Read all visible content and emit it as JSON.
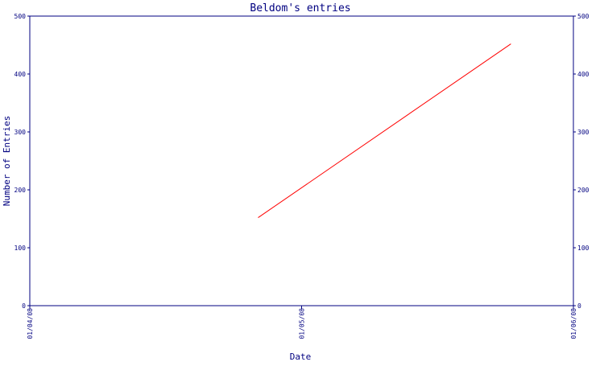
{
  "chart_data": {
    "type": "line",
    "title": "Beldom's entries",
    "xlabel": "Date",
    "ylabel": "Number of Entries",
    "x_ticks": [
      "01/04/08",
      "01/05/08",
      "01/06/08"
    ],
    "y_ticks": [
      "0",
      "100",
      "200",
      "300",
      "400",
      "500"
    ],
    "xlim": [
      "01/04/08",
      "01/06/08"
    ],
    "ylim": [
      0,
      500
    ],
    "grid": false,
    "right_axis_mirrored": true,
    "series": [
      {
        "color": "#ff0000",
        "points": [
          {
            "x": "01/04/08",
            "x_fraction": 0.42,
            "y": 152
          },
          {
            "x": "01/05/08",
            "x_fraction": 0.885,
            "y": 452
          }
        ]
      }
    ]
  },
  "colors": {
    "axis": "#000080",
    "text": "#000080",
    "line": "#ff0000",
    "background": "#ffffff"
  }
}
